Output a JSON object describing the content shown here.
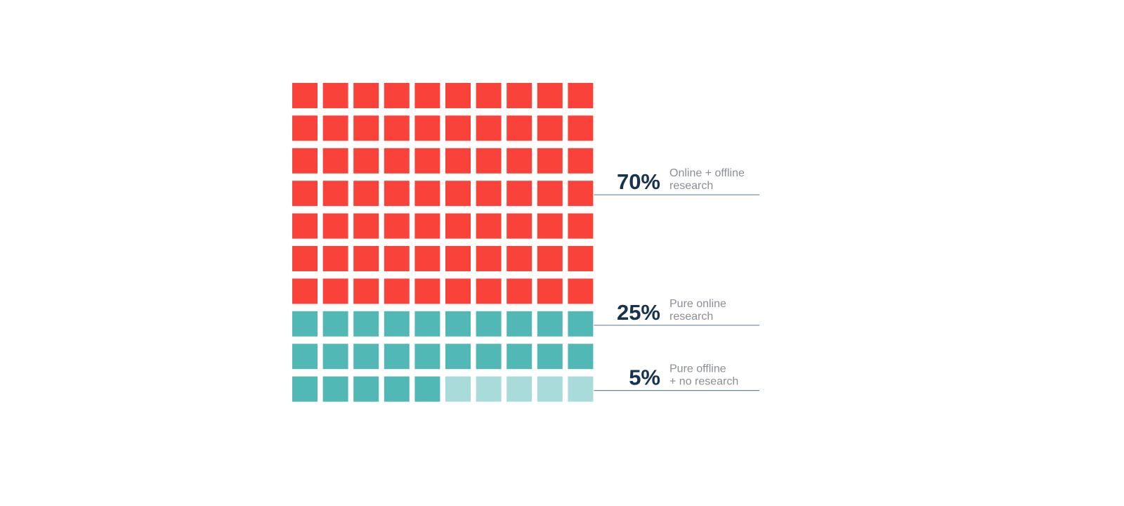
{
  "chart_data": {
    "type": "waffle",
    "grid": {
      "rows": 10,
      "cols": 10
    },
    "total": 100,
    "segments": [
      {
        "key": "online-offline",
        "value": 70,
        "label_value": "70%",
        "label_lines": [
          "Online + offline",
          "research"
        ],
        "color": "#f94239"
      },
      {
        "key": "pure-online",
        "value": 25,
        "label_value": "25%",
        "label_lines": [
          "Pure online",
          "research"
        ],
        "color": "#52b8b6"
      },
      {
        "key": "pure-offline",
        "value": 5,
        "label_value": "5%",
        "label_lines": [
          "Pure offline",
          "+ no research"
        ],
        "color": "#a8dbd9"
      }
    ]
  }
}
